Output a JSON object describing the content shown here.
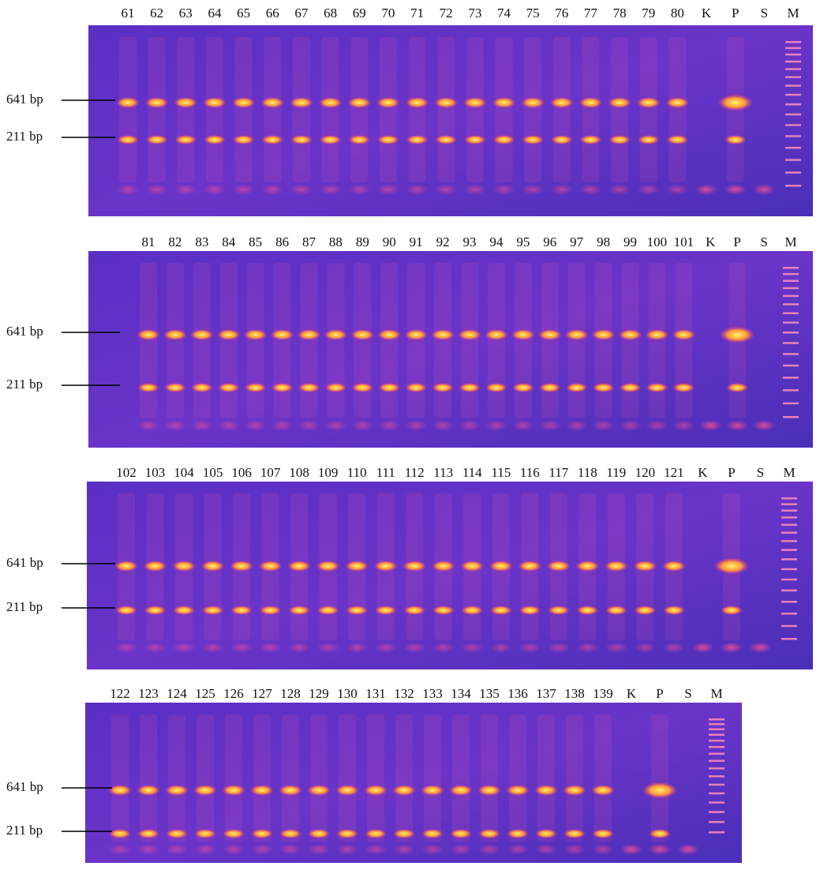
{
  "panels": [
    {
      "lanes": [
        "61",
        "62",
        "63",
        "64",
        "65",
        "66",
        "67",
        "68",
        "69",
        "70",
        "71",
        "72",
        "73",
        "74",
        "75",
        "76",
        "77",
        "78",
        "79",
        "80",
        "K",
        "P",
        "S",
        "M"
      ],
      "markers": [
        "641 bp",
        "211 bp"
      ]
    },
    {
      "lanes": [
        "81",
        "82",
        "83",
        "84",
        "85",
        "86",
        "87",
        "88",
        "89",
        "90",
        "91",
        "92",
        "93",
        "94",
        "95",
        "96",
        "97",
        "98",
        "99",
        "100",
        "101",
        "K",
        "P",
        "S",
        "M"
      ],
      "markers": [
        "641 bp",
        "211 bp"
      ]
    },
    {
      "lanes": [
        "102",
        "103",
        "104",
        "105",
        "106",
        "107",
        "108",
        "109",
        "110",
        "111",
        "112",
        "113",
        "114",
        "115",
        "116",
        "117",
        "118",
        "119",
        "120",
        "121",
        "K",
        "P",
        "S",
        "M"
      ],
      "markers": [
        "641 bp",
        "211 bp"
      ]
    },
    {
      "lanes": [
        "122",
        "123",
        "124",
        "125",
        "126",
        "127",
        "128",
        "129",
        "130",
        "131",
        "132",
        "133",
        "134",
        "135",
        "136",
        "137",
        "138",
        "139",
        "K",
        "P",
        "S",
        "M"
      ],
      "markers": [
        "641 bp",
        "211 bp"
      ]
    }
  ]
}
